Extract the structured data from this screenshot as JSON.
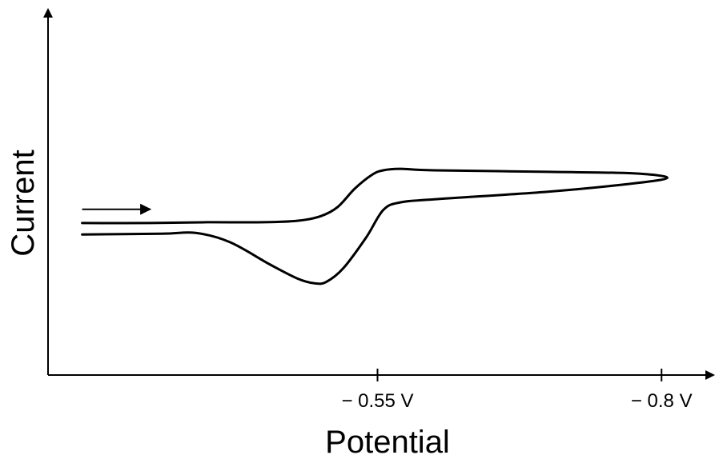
{
  "chart_data": {
    "type": "line",
    "title": "",
    "xlabel": "Potential",
    "ylabel": "Current",
    "grid": false,
    "legend": "none",
    "x_ticks": [
      {
        "value": -0.55,
        "label": "− 0.55 V"
      },
      {
        "value": -0.8,
        "label": "− 0.8 V"
      }
    ],
    "xlim": [
      -0.26,
      -0.84
    ],
    "ylim": [
      -1.0,
      1.35
    ],
    "scan_arrow": {
      "direction": "right",
      "from": -0.29,
      "to": -0.35,
      "y": 0.085
    },
    "series": [
      {
        "values": [
          [
            -0.29,
            -0.08
          ],
          [
            -0.36,
            -0.075
          ],
          [
            -0.39,
            -0.07
          ],
          [
            -0.42,
            -0.13
          ],
          [
            -0.455,
            -0.275
          ],
          [
            -0.48,
            -0.37
          ],
          [
            -0.495,
            -0.4
          ],
          [
            -0.505,
            -0.39
          ],
          [
            -0.52,
            -0.3
          ],
          [
            -0.54,
            -0.1
          ],
          [
            -0.555,
            0.08
          ],
          [
            -0.57,
            0.13
          ],
          [
            -0.6,
            0.15
          ],
          [
            -0.7,
            0.2
          ],
          [
            -0.77,
            0.25
          ],
          [
            -0.805,
            0.29
          ],
          [
            -0.775,
            0.32
          ],
          [
            -0.7,
            0.33
          ],
          [
            -0.6,
            0.34
          ],
          [
            -0.57,
            0.35
          ],
          [
            -0.555,
            0.34
          ],
          [
            -0.545,
            0.31
          ],
          [
            -0.53,
            0.22
          ],
          [
            -0.515,
            0.1
          ],
          [
            -0.5,
            0.04
          ],
          [
            -0.48,
            0.01
          ],
          [
            -0.45,
            0.0
          ],
          [
            -0.4,
            0.0
          ],
          [
            -0.35,
            -0.005
          ],
          [
            -0.29,
            -0.005
          ]
        ]
      }
    ]
  }
}
